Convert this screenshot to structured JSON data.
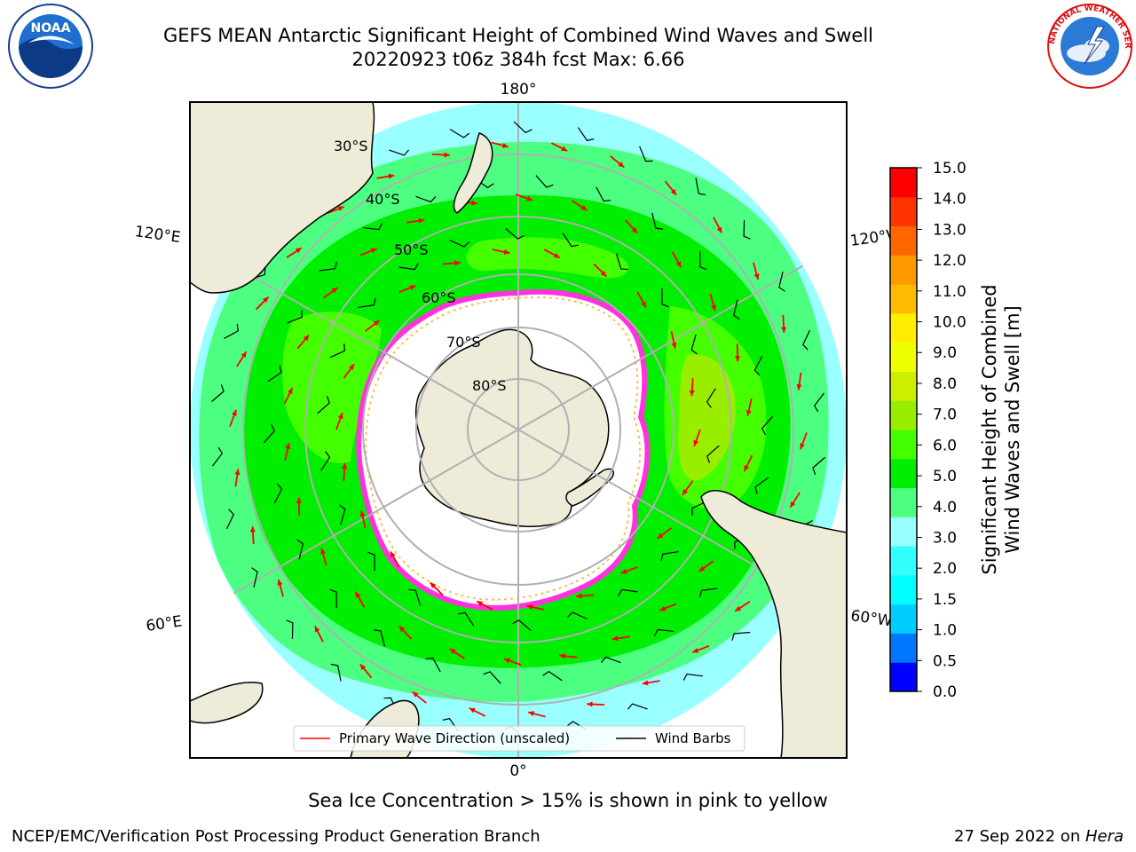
{
  "header": {
    "title_line1": "GEFS MEAN Antarctic Significant Height of Combined Wind Waves and Swell",
    "title_line2": "20220923 t06z 384h fcst   Max: 6.66"
  },
  "logos": {
    "left": {
      "icon": "noaa-logo-icon",
      "text": "NOAA"
    },
    "right": {
      "icon": "national-weather-service-logo-icon",
      "text": "NATIONAL WEATHER SERVICE"
    }
  },
  "map": {
    "projection": "south-polar-stereographic",
    "longitude_labels": {
      "top": "180°",
      "upper_left": "120°E",
      "upper_right": "120°W",
      "lower_left": "60°E",
      "lower_right": "60°W",
      "bottom": "0°"
    },
    "latitude_labels": [
      "30°S",
      "40°S",
      "50°S",
      "60°S",
      "70°S",
      "80°S"
    ],
    "legend": {
      "primary_wave": "Primary Wave Direction (unscaled)",
      "wind_barbs": "Wind Barbs"
    },
    "colors": {
      "land": "#efebd9",
      "sea_ice": "#ffffff",
      "ice_edge_pink": "#ff33dd",
      "ice_edge_yellow": "#ffbb55",
      "arrow": "#ff0000",
      "barb": "#000000",
      "graticule": "#b0b0b0"
    }
  },
  "colorbar": {
    "title_line1": "Significant Height of Combined",
    "title_line2": "Wind Waves and Swell [m]",
    "ticks": [
      "0.0",
      "0.5",
      "1.0",
      "1.5",
      "2.0",
      "3.0",
      "4.0",
      "5.0",
      "6.0",
      "7.0",
      "8.0",
      "9.0",
      "10.0",
      "11.0",
      "12.0",
      "13.0",
      "14.0",
      "15.0"
    ],
    "colors": [
      "#0000ff",
      "#0077ff",
      "#00ccff",
      "#00ffff",
      "#33ffff",
      "#99ffff",
      "#4dff80",
      "#00ee00",
      "#44ff00",
      "#99ee00",
      "#ccee00",
      "#eeff00",
      "#ffee00",
      "#ffbb00",
      "#ff9900",
      "#ff6600",
      "#ff3300",
      "#ff0000"
    ]
  },
  "note": "Sea Ice Concentration > 15% is shown in pink to yellow",
  "footer": {
    "left": "NCEP/EMC/Verification Post Processing Product Generation Branch",
    "right_prefix": "27 Sep 2022 on ",
    "right_system": "Hera"
  }
}
